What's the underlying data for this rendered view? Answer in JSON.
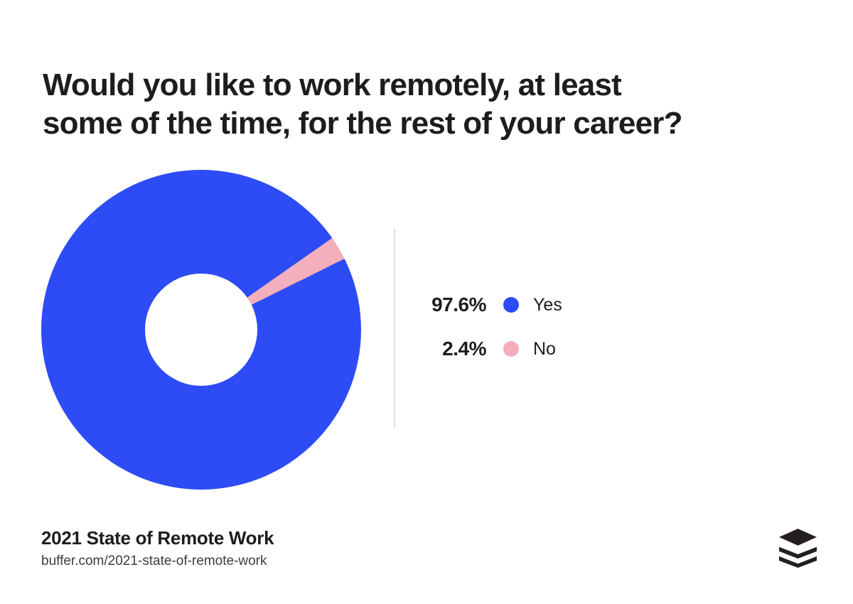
{
  "header": {
    "title": "Would you like to work remotely, at least some of the time, for the rest of your career?",
    "title_lines": [
      "Would you like to work remotely, at least",
      "some of the time, for the rest of your career?"
    ]
  },
  "chart_data": {
    "type": "pie",
    "variant": "donut",
    "title": "Would you like to work remotely, at least some of the time, for the rest of your career?",
    "labels": [
      "Yes",
      "No"
    ],
    "values": [
      97.6,
      2.4
    ],
    "value_labels": [
      "97.6%",
      "2.4%"
    ],
    "colors": [
      "#2d4cf5",
      "#f3afbb"
    ],
    "legend_position": "right",
    "donut_hole_ratio": 0.35,
    "no_slice_start_deg_clockwise_from_top": 55
  },
  "legend": {
    "items": [
      {
        "value": "97.6%",
        "label": "Yes",
        "color": "#2d4cf5"
      },
      {
        "value": "2.4%",
        "label": "No",
        "color": "#f3afbb"
      }
    ]
  },
  "footer": {
    "title": "2021 State of Remote Work",
    "url": "buffer.com/2021-state-of-remote-work"
  },
  "icons": {
    "logo": "buffer-stack-logo"
  },
  "colors": {
    "accent_blue": "#2d4cf5",
    "accent_pink": "#f3afbb",
    "text_dark": "#1d1d1f",
    "divider": "#dedede",
    "logo": "#231f20"
  }
}
